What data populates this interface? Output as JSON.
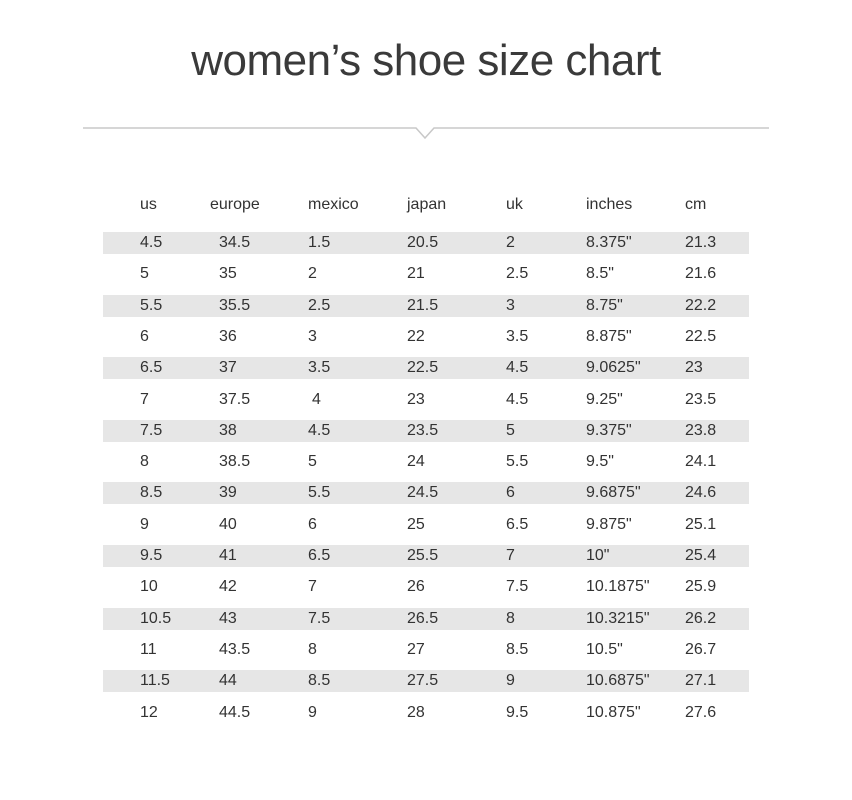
{
  "title": "women’s shoe size chart",
  "columns": [
    "us",
    "europe",
    "mexico",
    "japan",
    "uk",
    "inches",
    "cm"
  ],
  "rows": [
    [
      "4.5",
      "34.5",
      "1.5",
      "20.5",
      "2",
      "8.375\"",
      "21.3"
    ],
    [
      "5",
      "35",
      "2",
      "21",
      "2.5",
      "8.5\"",
      "21.6"
    ],
    [
      "5.5",
      "35.5",
      "2.5",
      "21.5",
      "3",
      "8.75\"",
      "22.2"
    ],
    [
      "6",
      "36",
      "3",
      "22",
      "3.5",
      "8.875\"",
      "22.5"
    ],
    [
      "6.5",
      "37",
      "3.5",
      "22.5",
      "4.5",
      "9.0625\"",
      "23"
    ],
    [
      "7",
      "37.5",
      "4",
      "23",
      "4.5",
      "9.25\"",
      "23.5"
    ],
    [
      "7.5",
      "38",
      "4.5",
      "23.5",
      "5",
      "9.375\"",
      "23.8"
    ],
    [
      "8",
      "38.5",
      "5",
      "24",
      "5.5",
      "9.5\"",
      "24.1"
    ],
    [
      "8.5",
      "39",
      "5.5",
      "24.5",
      "6",
      "9.6875\"",
      "24.6"
    ],
    [
      "9",
      "40",
      "6",
      "25",
      "6.5",
      "9.875\"",
      "25.1"
    ],
    [
      "9.5",
      "41",
      "6.5",
      "25.5",
      "7",
      "10\"",
      "25.4"
    ],
    [
      "10",
      "42",
      "7",
      "26",
      "7.5",
      "10.1875\"",
      "25.9"
    ],
    [
      "10.5",
      "43",
      "7.5",
      "26.5",
      "8",
      "10.3215\"",
      "26.2"
    ],
    [
      "11",
      "43.5",
      "8",
      "27",
      "8.5",
      "10.5\"",
      "26.7"
    ],
    [
      "11.5",
      "44",
      "8.5",
      "27.5",
      "9",
      "10.6875\"",
      "27.1"
    ],
    [
      "12",
      "44.5",
      "9",
      "28",
      "9.5",
      "10.875\"",
      "27.6"
    ]
  ],
  "colors": {
    "stripe": "#e6e6e6",
    "text": "#333333",
    "divider": "#c8c8c8"
  }
}
